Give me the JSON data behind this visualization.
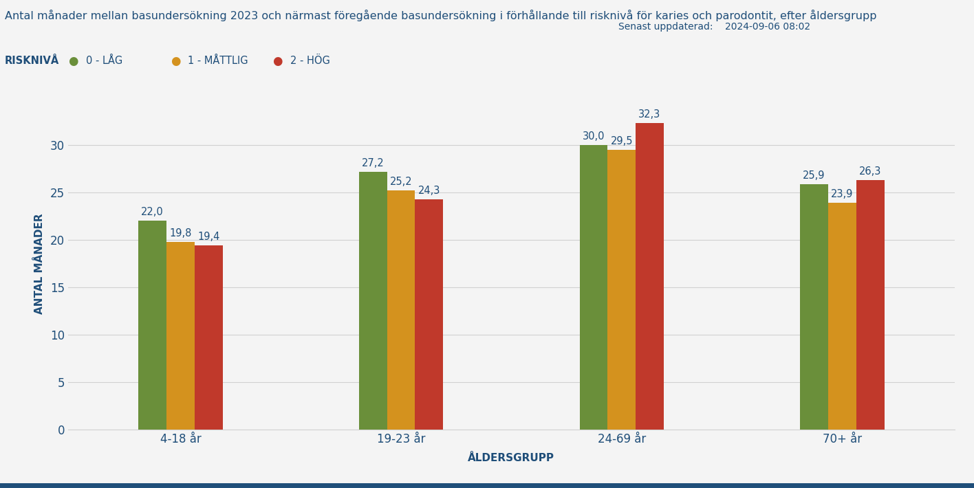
{
  "title": "Antal månader mellan basundersökning 2023 och närmast föregående basundersökning i förhållande till risknivå för karies och parodontit, efter åldersgrupp",
  "subtitle_date": "Senast uppdaterad:    2024-09-06 08:02",
  "ylabel": "ANTAL MÅNADER",
  "xlabel": "ÅLDERSGRUPP",
  "categories": [
    "4-18 år",
    "19-23 år",
    "24-69 år",
    "70+ år"
  ],
  "series": {
    "0 - LÅG": [
      22.0,
      27.2,
      30.0,
      25.9
    ],
    "1 - MÅTTLIG": [
      19.8,
      25.2,
      29.5,
      23.9
    ],
    "2 - HÖG": [
      19.4,
      24.3,
      32.3,
      26.3
    ]
  },
  "colors": {
    "0 - LÅG": "#6a8f3a",
    "1 - MÅTTLIG": "#d4921e",
    "2 - HÖG": "#c0392b"
  },
  "legend_label": "RISKNIVÅ",
  "ylim": [
    0,
    35
  ],
  "yticks": [
    0,
    5,
    10,
    15,
    20,
    25,
    30
  ],
  "background_color": "#f4f4f4",
  "plot_bg_color": "#f4f4f4",
  "title_color": "#1f4e79",
  "axis_label_color": "#1f4e79",
  "tick_label_color": "#1f4e79",
  "legend_text_color": "#1f4e79",
  "bar_value_color": "#1f4e79",
  "grid_color": "#d0d0d0",
  "bottom_border_color": "#1f4e79",
  "bar_width": 0.28,
  "bar_gap": 0.0
}
